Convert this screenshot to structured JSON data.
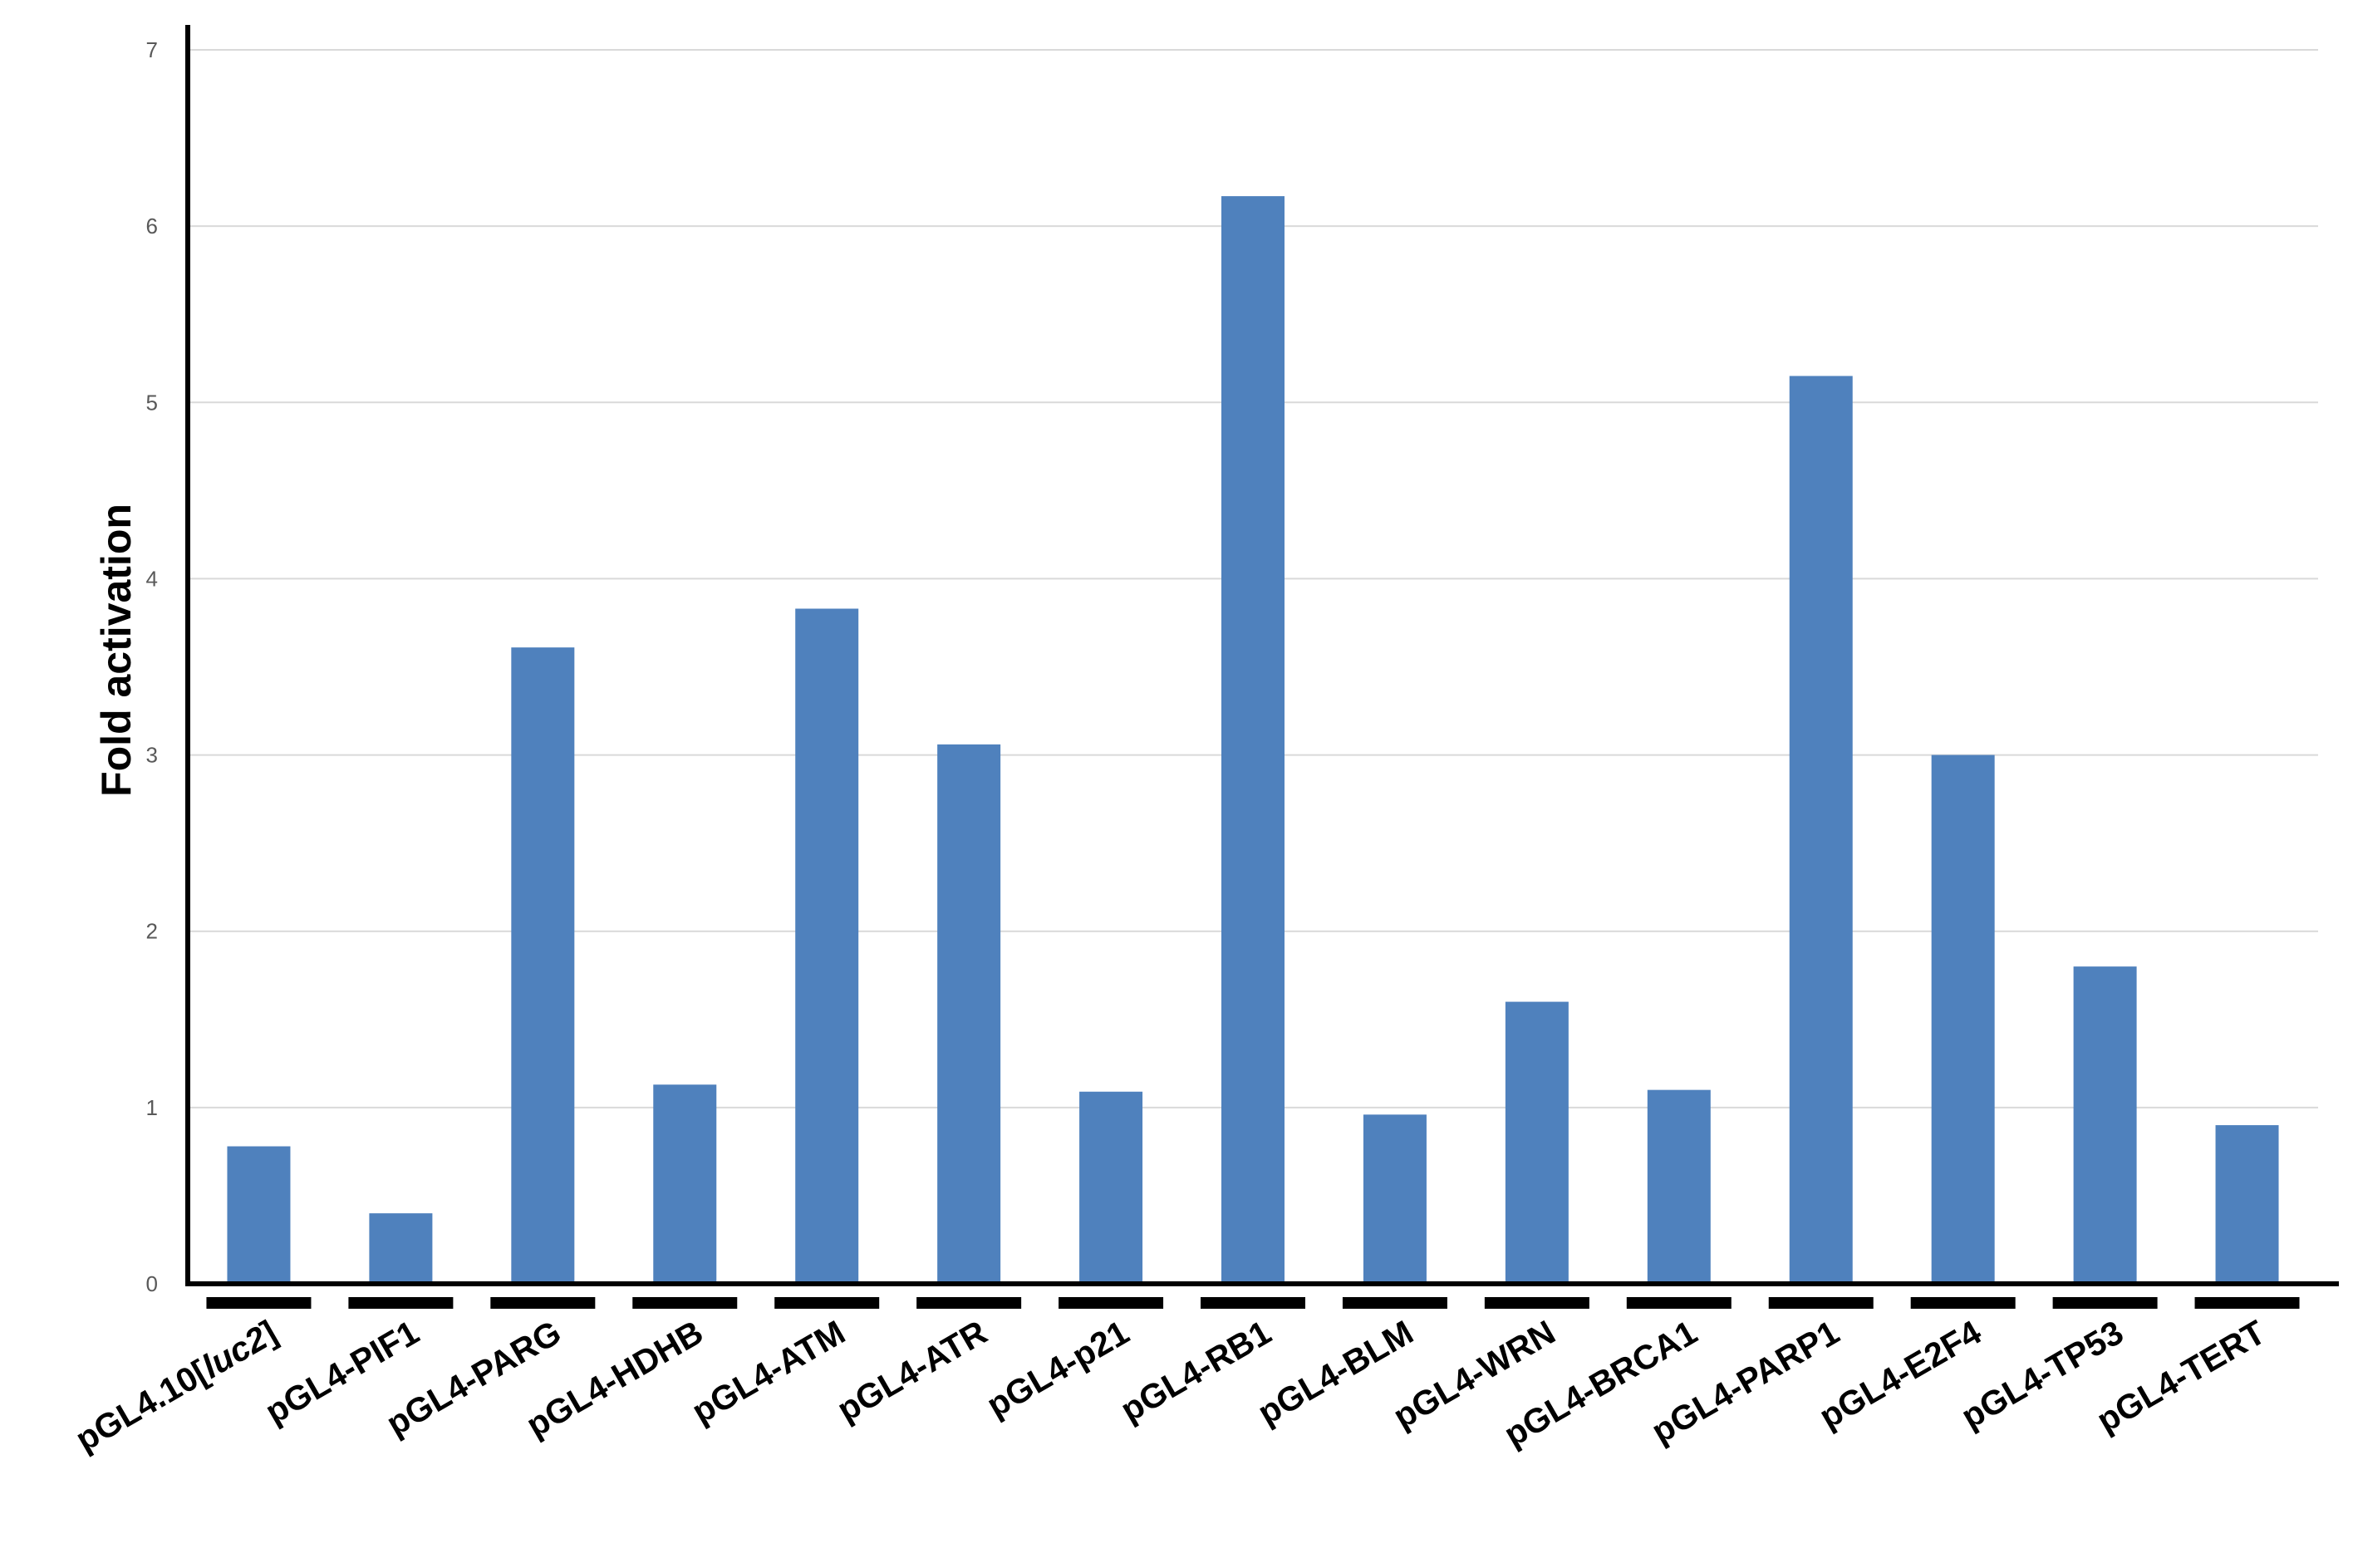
{
  "chart_data": {
    "type": "bar",
    "title": "",
    "xlabel": "",
    "ylabel": "Fold activation",
    "ylim": [
      0,
      7
    ],
    "yticks": [
      0,
      1,
      2,
      3,
      4,
      5,
      6,
      7
    ],
    "grid": true,
    "legend": "none",
    "bar_color": "#4f81bd",
    "categories": [
      {
        "pre": "pGL4.10[",
        "it": "luc2",
        "post": "]"
      },
      {
        "pre": "pGL4-PIF1",
        "it": "",
        "post": ""
      },
      {
        "pre": "pGL4-PARG",
        "it": "",
        "post": ""
      },
      {
        "pre": "pGL4-HDHB",
        "it": "",
        "post": ""
      },
      {
        "pre": "pGL4-ATM",
        "it": "",
        "post": ""
      },
      {
        "pre": "pGL4-ATR",
        "it": "",
        "post": ""
      },
      {
        "pre": "pGL4-p21",
        "it": "",
        "post": ""
      },
      {
        "pre": "pGL4-RB1",
        "it": "",
        "post": ""
      },
      {
        "pre": "pGL4-BLM",
        "it": "",
        "post": ""
      },
      {
        "pre": "pGL4-WRN",
        "it": "",
        "post": ""
      },
      {
        "pre": "pGL4-BRCA1",
        "it": "",
        "post": ""
      },
      {
        "pre": "pGL4-PARP1",
        "it": "",
        "post": ""
      },
      {
        "pre": "pGL4-E2F4",
        "it": "",
        "post": ""
      },
      {
        "pre": "pGL4-TP53",
        "it": "",
        "post": ""
      },
      {
        "pre": "pGL4-TERT",
        "it": "",
        "post": ""
      }
    ],
    "values": [
      0.78,
      0.4,
      3.61,
      1.13,
      3.83,
      3.06,
      1.09,
      6.17,
      0.96,
      1.6,
      1.1,
      5.15,
      3.0,
      1.8,
      0.9
    ]
  }
}
